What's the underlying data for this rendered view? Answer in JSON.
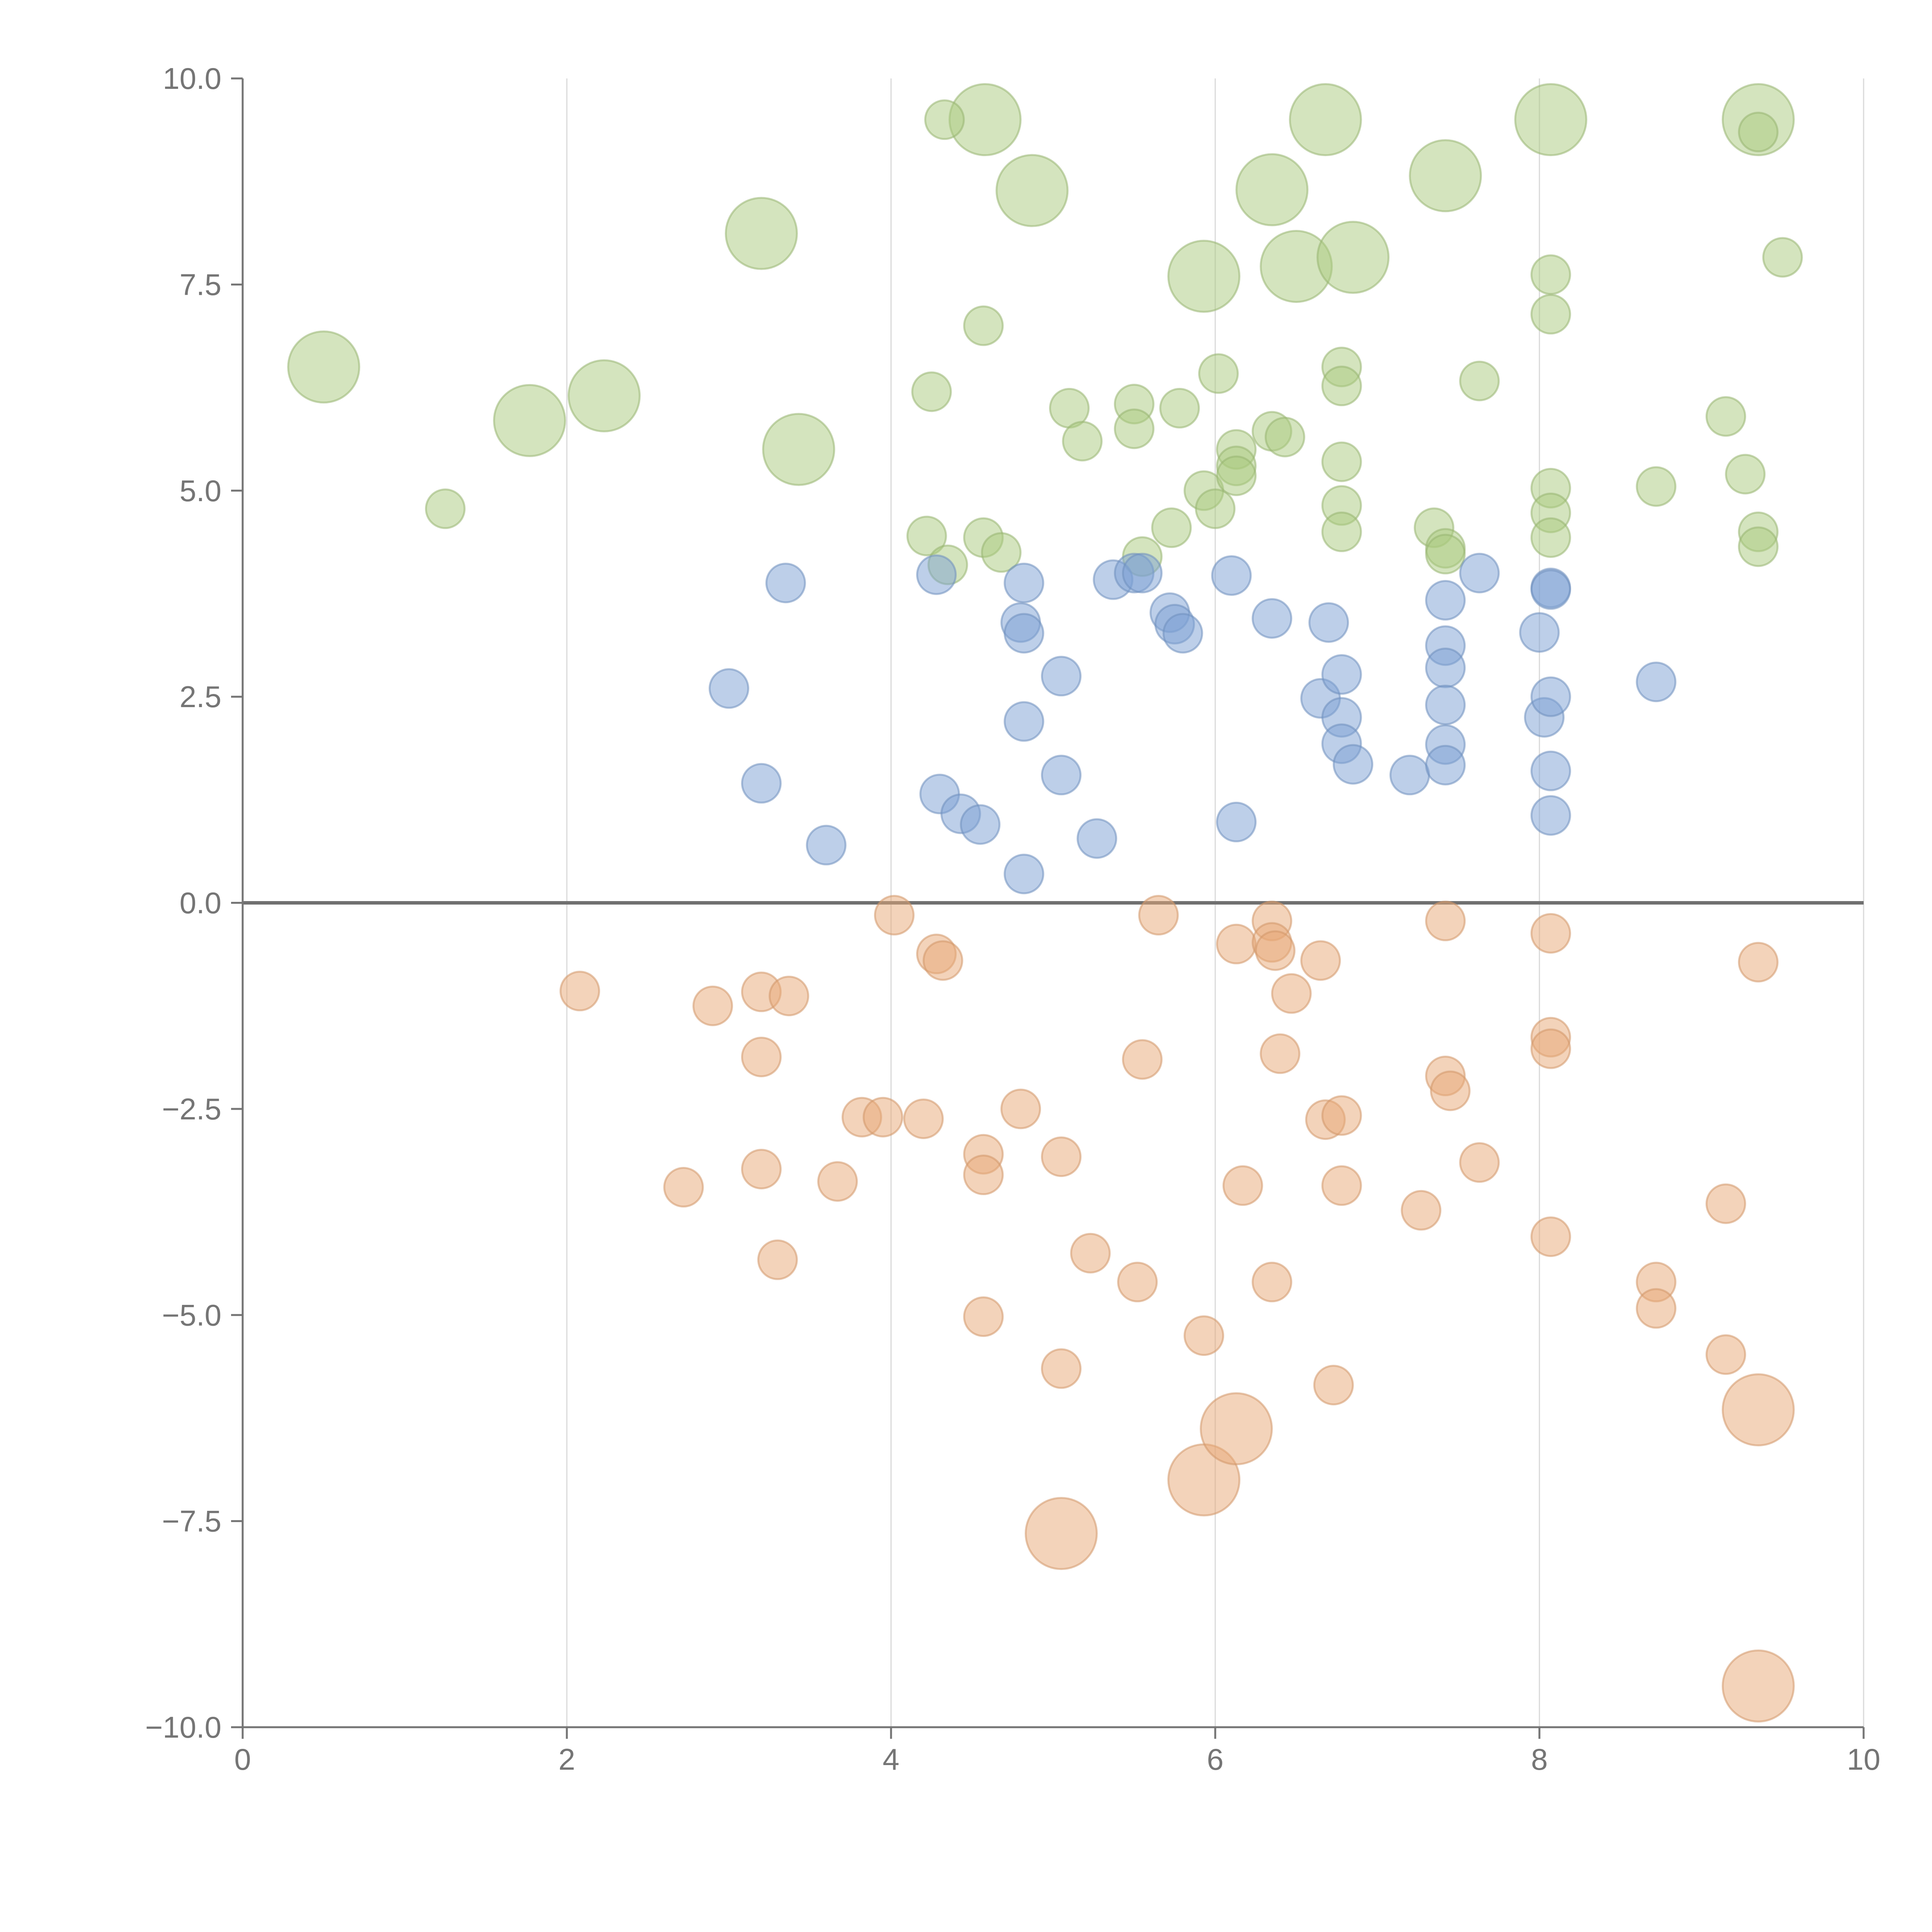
{
  "chart_data": {
    "type": "scatter",
    "title": "",
    "xlabel": "",
    "ylabel": "",
    "xlim": [
      0,
      10
    ],
    "ylim": [
      -10,
      10
    ],
    "x_ticks": [
      0,
      2,
      4,
      6,
      8,
      10
    ],
    "x_tick_labels": [
      "0",
      "2",
      "4",
      "6",
      "8",
      "10"
    ],
    "y_ticks": [
      10,
      7.5,
      5,
      2.5,
      0,
      -2.5,
      -5,
      -7.5,
      -10
    ],
    "y_tick_labels": [
      "10.0",
      "7.5",
      "5.0",
      "2.5",
      "0.0",
      "−2.5",
      "−5.0",
      "−7.5",
      "−10.0"
    ],
    "grid": "vertical",
    "zero_line": true,
    "legend": "none",
    "bubble_size_encoding": "large bubbles = large; others = small",
    "series": [
      {
        "color": "#a9c97e",
        "points": [
          {
            "x": 0.5,
            "y": 6.5,
            "s": "large"
          },
          {
            "x": 1.77,
            "y": 5.85,
            "s": "large"
          },
          {
            "x": 2.23,
            "y": 6.15,
            "s": "large"
          },
          {
            "x": 3.2,
            "y": 8.12,
            "s": "large"
          },
          {
            "x": 3.43,
            "y": 5.5,
            "s": "large"
          },
          {
            "x": 4.58,
            "y": 9.5,
            "s": "large"
          },
          {
            "x": 4.87,
            "y": 8.64,
            "s": "large"
          },
          {
            "x": 5.93,
            "y": 7.6,
            "s": "large"
          },
          {
            "x": 6.35,
            "y": 8.65,
            "s": "large"
          },
          {
            "x": 6.5,
            "y": 7.72,
            "s": "large"
          },
          {
            "x": 6.68,
            "y": 9.5,
            "s": "large"
          },
          {
            "x": 6.85,
            "y": 7.83,
            "s": "large"
          },
          {
            "x": 7.42,
            "y": 8.82,
            "s": "large"
          },
          {
            "x": 8.07,
            "y": 9.5,
            "s": "large"
          },
          {
            "x": 9.35,
            "y": 9.5,
            "s": "large"
          },
          {
            "x": 1.25,
            "y": 4.78
          },
          {
            "x": 4.25,
            "y": 6.2
          },
          {
            "x": 4.22,
            "y": 4.45
          },
          {
            "x": 4.33,
            "y": 9.5
          },
          {
            "x": 4.35,
            "y": 4.1
          },
          {
            "x": 4.57,
            "y": 7.0
          },
          {
            "x": 4.57,
            "y": 4.43
          },
          {
            "x": 4.68,
            "y": 4.25
          },
          {
            "x": 5.1,
            "y": 6.0
          },
          {
            "x": 5.18,
            "y": 5.6
          },
          {
            "x": 5.5,
            "y": 6.05
          },
          {
            "x": 5.5,
            "y": 5.75
          },
          {
            "x": 5.55,
            "y": 4.2
          },
          {
            "x": 5.73,
            "y": 4.55
          },
          {
            "x": 5.78,
            "y": 6.0
          },
          {
            "x": 5.93,
            "y": 5.0
          },
          {
            "x": 6.0,
            "y": 4.78
          },
          {
            "x": 6.02,
            "y": 6.42
          },
          {
            "x": 6.13,
            "y": 5.5
          },
          {
            "x": 6.13,
            "y": 5.3
          },
          {
            "x": 6.13,
            "y": 5.18
          },
          {
            "x": 6.35,
            "y": 5.72
          },
          {
            "x": 6.43,
            "y": 5.65
          },
          {
            "x": 6.78,
            "y": 6.5
          },
          {
            "x": 6.78,
            "y": 6.27
          },
          {
            "x": 6.78,
            "y": 5.35
          },
          {
            "x": 6.78,
            "y": 4.82
          },
          {
            "x": 6.78,
            "y": 4.5
          },
          {
            "x": 7.35,
            "y": 4.55
          },
          {
            "x": 7.42,
            "y": 4.3
          },
          {
            "x": 7.42,
            "y": 4.23
          },
          {
            "x": 7.63,
            "y": 6.33
          },
          {
            "x": 8.07,
            "y": 7.62
          },
          {
            "x": 8.07,
            "y": 7.14
          },
          {
            "x": 8.07,
            "y": 5.03
          },
          {
            "x": 8.07,
            "y": 4.73
          },
          {
            "x": 8.07,
            "y": 4.43
          },
          {
            "x": 8.72,
            "y": 5.05
          },
          {
            "x": 9.15,
            "y": 5.9
          },
          {
            "x": 9.27,
            "y": 5.2
          },
          {
            "x": 9.35,
            "y": 9.35
          },
          {
            "x": 9.35,
            "y": 4.5
          },
          {
            "x": 9.35,
            "y": 4.32
          },
          {
            "x": 9.5,
            "y": 7.83
          }
        ]
      },
      {
        "color": "#7c9fd3",
        "points": [
          {
            "x": 3.0,
            "y": 2.6
          },
          {
            "x": 3.2,
            "y": 1.45
          },
          {
            "x": 3.35,
            "y": 3.88
          },
          {
            "x": 3.6,
            "y": 0.7
          },
          {
            "x": 4.28,
            "y": 3.98
          },
          {
            "x": 4.3,
            "y": 1.32
          },
          {
            "x": 4.43,
            "y": 1.08
          },
          {
            "x": 4.55,
            "y": 0.95
          },
          {
            "x": 4.8,
            "y": 3.4
          },
          {
            "x": 4.82,
            "y": 3.27
          },
          {
            "x": 4.82,
            "y": 3.88
          },
          {
            "x": 4.82,
            "y": 2.2
          },
          {
            "x": 4.82,
            "y": 0.35
          },
          {
            "x": 5.05,
            "y": 2.75
          },
          {
            "x": 5.05,
            "y": 1.55
          },
          {
            "x": 5.27,
            "y": 0.78
          },
          {
            "x": 5.37,
            "y": 3.92
          },
          {
            "x": 5.5,
            "y": 4.0
          },
          {
            "x": 5.55,
            "y": 4.0
          },
          {
            "x": 5.72,
            "y": 3.52
          },
          {
            "x": 5.75,
            "y": 3.38
          },
          {
            "x": 5.8,
            "y": 3.27
          },
          {
            "x": 6.1,
            "y": 3.97
          },
          {
            "x": 6.13,
            "y": 0.98
          },
          {
            "x": 6.35,
            "y": 3.45
          },
          {
            "x": 6.65,
            "y": 2.48
          },
          {
            "x": 6.7,
            "y": 3.4
          },
          {
            "x": 6.78,
            "y": 2.77
          },
          {
            "x": 6.78,
            "y": 2.25
          },
          {
            "x": 6.78,
            "y": 1.93
          },
          {
            "x": 6.85,
            "y": 1.68
          },
          {
            "x": 7.2,
            "y": 1.55
          },
          {
            "x": 7.42,
            "y": 3.67
          },
          {
            "x": 7.42,
            "y": 3.12
          },
          {
            "x": 7.42,
            "y": 2.85
          },
          {
            "x": 7.42,
            "y": 2.4
          },
          {
            "x": 7.42,
            "y": 1.92
          },
          {
            "x": 7.42,
            "y": 1.67
          },
          {
            "x": 7.63,
            "y": 4.0
          },
          {
            "x": 8.0,
            "y": 3.28
          },
          {
            "x": 8.03,
            "y": 2.25
          },
          {
            "x": 8.07,
            "y": 3.82
          },
          {
            "x": 8.07,
            "y": 3.8
          },
          {
            "x": 8.07,
            "y": 2.5
          },
          {
            "x": 8.07,
            "y": 1.6
          },
          {
            "x": 8.07,
            "y": 1.06
          },
          {
            "x": 8.72,
            "y": 2.68
          }
        ]
      },
      {
        "color": "#e8a875",
        "points": [
          {
            "x": 5.05,
            "y": -7.65,
            "s": "large"
          },
          {
            "x": 5.93,
            "y": -7.0,
            "s": "large"
          },
          {
            "x": 6.13,
            "y": -6.38,
            "s": "large"
          },
          {
            "x": 9.35,
            "y": -6.15,
            "s": "large"
          },
          {
            "x": 9.35,
            "y": -9.5,
            "s": "large"
          },
          {
            "x": 2.08,
            "y": -1.07
          },
          {
            "x": 2.72,
            "y": -3.45
          },
          {
            "x": 2.9,
            "y": -1.25
          },
          {
            "x": 3.2,
            "y": -1.08
          },
          {
            "x": 3.2,
            "y": -1.87
          },
          {
            "x": 3.2,
            "y": -3.23
          },
          {
            "x": 3.3,
            "y": -4.33
          },
          {
            "x": 3.37,
            "y": -1.13
          },
          {
            "x": 3.67,
            "y": -3.38
          },
          {
            "x": 3.82,
            "y": -2.6
          },
          {
            "x": 3.95,
            "y": -2.6
          },
          {
            "x": 4.02,
            "y": -0.15
          },
          {
            "x": 4.2,
            "y": -2.62
          },
          {
            "x": 4.28,
            "y": -0.62
          },
          {
            "x": 4.32,
            "y": -0.7
          },
          {
            "x": 4.57,
            "y": -3.05
          },
          {
            "x": 4.57,
            "y": -3.3
          },
          {
            "x": 4.57,
            "y": -5.02
          },
          {
            "x": 4.8,
            "y": -2.5
          },
          {
            "x": 5.05,
            "y": -3.08
          },
          {
            "x": 5.05,
            "y": -5.65
          },
          {
            "x": 5.23,
            "y": -4.25
          },
          {
            "x": 5.52,
            "y": -4.6
          },
          {
            "x": 5.55,
            "y": -1.9
          },
          {
            "x": 5.65,
            "y": -0.15
          },
          {
            "x": 5.93,
            "y": -5.25
          },
          {
            "x": 6.13,
            "y": -0.5
          },
          {
            "x": 6.17,
            "y": -3.43
          },
          {
            "x": 6.35,
            "y": -0.22
          },
          {
            "x": 6.35,
            "y": -0.48
          },
          {
            "x": 6.37,
            "y": -0.58
          },
          {
            "x": 6.35,
            "y": -4.6
          },
          {
            "x": 6.4,
            "y": -1.83
          },
          {
            "x": 6.47,
            "y": -1.1
          },
          {
            "x": 6.65,
            "y": -0.7
          },
          {
            "x": 6.68,
            "y": -2.63
          },
          {
            "x": 6.73,
            "y": -5.85
          },
          {
            "x": 6.78,
            "y": -2.58
          },
          {
            "x": 6.78,
            "y": -3.43
          },
          {
            "x": 7.27,
            "y": -3.73
          },
          {
            "x": 7.42,
            "y": -0.22
          },
          {
            "x": 7.42,
            "y": -2.1
          },
          {
            "x": 7.45,
            "y": -2.28
          },
          {
            "x": 7.63,
            "y": -3.15
          },
          {
            "x": 8.07,
            "y": -0.37
          },
          {
            "x": 8.07,
            "y": -1.63
          },
          {
            "x": 8.07,
            "y": -1.77
          },
          {
            "x": 8.07,
            "y": -4.05
          },
          {
            "x": 8.72,
            "y": -4.6
          },
          {
            "x": 8.72,
            "y": -4.92
          },
          {
            "x": 9.15,
            "y": -3.65
          },
          {
            "x": 9.15,
            "y": -5.48
          },
          {
            "x": 9.35,
            "y": -0.72
          }
        ]
      }
    ]
  }
}
